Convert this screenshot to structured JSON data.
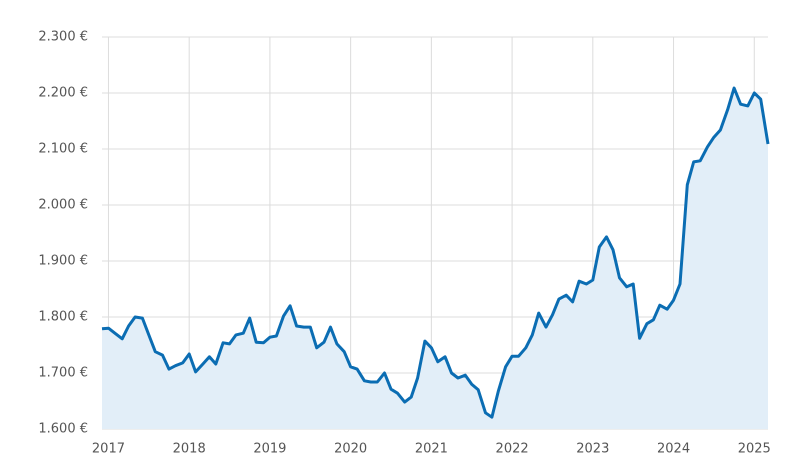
{
  "chart_data": {
    "type": "area",
    "x": [
      2016.92,
      2017,
      2017.08,
      2017.17,
      2017.25,
      2017.33,
      2017.42,
      2017.5,
      2017.58,
      2017.67,
      2017.75,
      2017.83,
      2017.92,
      2018,
      2018.08,
      2018.17,
      2018.25,
      2018.33,
      2018.42,
      2018.5,
      2018.58,
      2018.67,
      2018.75,
      2018.83,
      2018.92,
      2019,
      2019.08,
      2019.17,
      2019.25,
      2019.33,
      2019.42,
      2019.5,
      2019.58,
      2019.67,
      2019.75,
      2019.83,
      2019.92,
      2020,
      2020.08,
      2020.17,
      2020.25,
      2020.33,
      2020.42,
      2020.5,
      2020.58,
      2020.67,
      2020.75,
      2020.83,
      2020.92,
      2021,
      2021.08,
      2021.17,
      2021.25,
      2021.33,
      2021.42,
      2021.5,
      2021.58,
      2021.67,
      2021.75,
      2021.83,
      2021.92,
      2022,
      2022.08,
      2022.17,
      2022.25,
      2022.33,
      2022.42,
      2022.5,
      2022.58,
      2022.67,
      2022.75,
      2022.83,
      2022.92,
      2023,
      2023.08,
      2023.17,
      2023.25,
      2023.33,
      2023.42,
      2023.5,
      2023.58,
      2023.67,
      2023.75,
      2023.83,
      2023.92,
      2024,
      2024.08,
      2024.17,
      2024.25,
      2024.33,
      2024.42,
      2024.5,
      2024.58,
      2024.67,
      2024.75,
      2024.83,
      2024.92,
      2025,
      2025.08,
      2025.17
    ],
    "values": [
      1779,
      1780,
      1771,
      1761,
      1784,
      1800,
      1798,
      1768,
      1738,
      1732,
      1707,
      1713,
      1718,
      1734,
      1702,
      1716,
      1729,
      1716,
      1754,
      1752,
      1768,
      1771,
      1798,
      1755,
      1754,
      1764,
      1766,
      1802,
      1820,
      1784,
      1782,
      1782,
      1745,
      1755,
      1782,
      1752,
      1738,
      1711,
      1707,
      1686,
      1684,
      1684,
      1700,
      1671,
      1664,
      1648,
      1657,
      1691,
      1757,
      1745,
      1720,
      1729,
      1700,
      1691,
      1696,
      1680,
      1670,
      1629,
      1621,
      1668,
      1711,
      1730,
      1730,
      1745,
      1768,
      1807,
      1782,
      1804,
      1832,
      1839,
      1827,
      1864,
      1859,
      1866,
      1925,
      1943,
      1920,
      1870,
      1854,
      1859,
      1762,
      1788,
      1795,
      1821,
      1814,
      1830,
      1859,
      2036,
      2077,
      2079,
      2104,
      2121,
      2134,
      2170,
      2209,
      2180,
      2177,
      2200,
      2189,
      2109
    ],
    "color": "#0b6db3",
    "fill_color": "#e2eef8",
    "xlim": [
      2016.92,
      2025.17
    ],
    "xticks": [
      2017,
      2018,
      2019,
      2020,
      2021,
      2022,
      2023,
      2024,
      2025
    ],
    "ylim": [
      1600,
      2300
    ],
    "yticks": [
      {
        "value": 1600,
        "label": "1.600 €"
      },
      {
        "value": 1700,
        "label": "1.700 €"
      },
      {
        "value": 1800,
        "label": "1.800 €"
      },
      {
        "value": 1900,
        "label": "1.900 €"
      },
      {
        "value": 2000,
        "label": "2.000 €"
      },
      {
        "value": 2100,
        "label": "2.100 €"
      },
      {
        "value": 2200,
        "label": "2.200 €"
      },
      {
        "value": 2300,
        "label": "2.300 €"
      }
    ],
    "grid": true
  }
}
